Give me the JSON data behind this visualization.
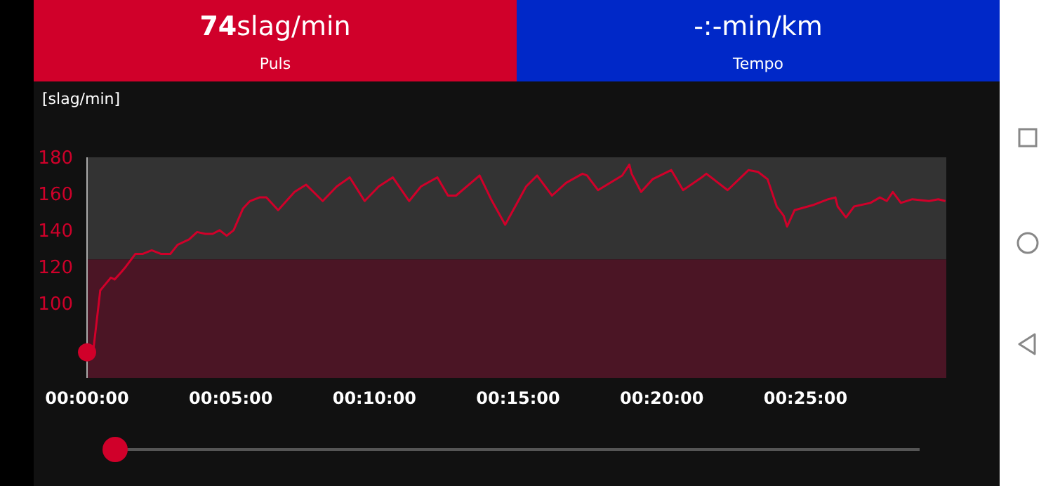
{
  "chart_data": {
    "type": "line",
    "ylabel": "[slag/min]",
    "annotations": [
      "74slag/min",
      "Puls",
      "-:-min/km",
      "Tempo"
    ],
    "x": [
      0,
      0.21,
      0.46,
      0.62,
      0.83,
      0.96,
      1.19,
      1.35,
      1.68,
      1.93,
      2.25,
      2.58,
      2.9,
      3.15,
      3.55,
      3.83,
      4.12,
      4.37,
      4.61,
      4.86,
      5.1,
      5.43,
      5.67,
      6.0,
      6.24,
      6.65,
      7.22,
      7.62,
      8.2,
      8.69,
      9.14,
      9.66,
      10.15,
      10.64,
      11.21,
      11.62,
      12.19,
      12.56,
      12.84,
      13.66,
      14.06,
      14.55,
      15.28,
      15.66,
      16.18,
      16.67,
      17.24,
      17.4,
      17.78,
      18.62,
      18.87,
      18.95,
      19.28,
      19.68,
      20.33,
      20.74,
      21.39,
      21.55,
      22.29,
      23.02,
      23.35,
      23.68,
      24.0,
      24.24,
      24.36,
      24.62,
      25.3,
      25.79,
      26.04,
      26.12,
      26.41,
      26.69,
      27.26,
      27.59,
      27.83,
      28.04,
      28.32,
      28.72,
      29.3,
      29.62,
      29.87
    ],
    "series": [
      {
        "color": "#d0002a",
        "values": [
          74,
          74,
          108,
          111,
          115,
          114,
          118,
          121,
          128,
          128,
          130,
          128,
          128,
          133,
          136,
          140,
          139,
          139,
          141,
          138,
          141,
          153,
          157,
          159,
          159,
          152,
          162,
          166,
          157,
          165,
          170,
          157,
          165,
          170,
          157,
          165,
          170,
          160,
          160,
          171,
          158,
          144,
          165,
          171,
          160,
          167,
          172,
          171,
          163,
          171,
          177,
          172,
          162,
          169,
          174,
          163,
          170,
          172,
          163,
          174,
          173,
          169,
          154,
          149,
          143,
          152,
          155,
          158,
          159,
          154,
          148,
          154,
          156,
          159,
          157,
          162,
          156,
          158,
          157,
          158,
          157
        ]
      },
      {
        "type": "scatter",
        "color": "#d0002a",
        "marker": "circle",
        "x": [
          0
        ],
        "values": [
          74
        ]
      }
    ],
    "xlim": [
      0,
      29.9
    ],
    "xticks": [
      {
        "value": 0,
        "label": "00:00:00"
      },
      {
        "value": 5,
        "label": "00:05:00"
      },
      {
        "value": 10,
        "label": "00:10:00"
      },
      {
        "value": 15,
        "label": "00:15:00"
      },
      {
        "value": 20,
        "label": "00:20:00"
      },
      {
        "value": 25,
        "label": "00:25:00"
      }
    ],
    "ylim": [
      60,
      181
    ],
    "yticks": [
      100,
      120,
      140,
      160,
      180
    ],
    "bands": [
      {
        "axis": "y",
        "from": 60,
        "to": 125,
        "color": "#4b1525"
      },
      {
        "axis": "y",
        "from": 125,
        "to": 181,
        "color": "#333333"
      }
    ],
    "marker": "none",
    "grid": false,
    "legend": false
  }
}
